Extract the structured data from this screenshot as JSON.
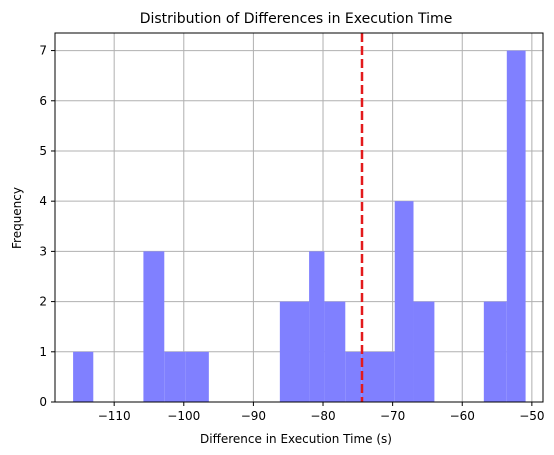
{
  "chart_data": {
    "type": "bar",
    "title": "Distribution of Differences in Execution Time",
    "xlabel": "Difference in Execution Time (s)",
    "ylabel": "Frequency",
    "xlim": [
      -118.5,
      -48.4
    ],
    "ylim": [
      0,
      7.35
    ],
    "xticks": [
      -110,
      -100,
      -90,
      -80,
      -70,
      -60,
      -50
    ],
    "xtick_labels": [
      "−110",
      "−100",
      "−90",
      "−80",
      "−70",
      "−60",
      "−50"
    ],
    "yticks": [
      0,
      1,
      2,
      3,
      4,
      5,
      6,
      7
    ],
    "grid": true,
    "bar_color": "#8080ff",
    "bins": [
      {
        "x0": -115.9,
        "x1": -113.0,
        "count": 1
      },
      {
        "x0": -113.0,
        "x1": -110.8,
        "count": 0
      },
      {
        "x0": -110.8,
        "x1": -107.2,
        "count": 0
      },
      {
        "x0": -105.8,
        "x1": -102.8,
        "count": 3
      },
      {
        "x0": -102.8,
        "x1": -99.8,
        "count": 1
      },
      {
        "x0": -99.8,
        "x1": -96.4,
        "count": 1
      },
      {
        "x0": -86.2,
        "x1": -82.0,
        "count": 2
      },
      {
        "x0": -82.0,
        "x1": -79.8,
        "count": 3
      },
      {
        "x0": -79.8,
        "x1": -76.8,
        "count": 2
      },
      {
        "x0": -76.8,
        "x1": -74.5,
        "count": 1
      },
      {
        "x0": -74.5,
        "x1": -69.7,
        "count": 1
      },
      {
        "x0": -69.7,
        "x1": -67.0,
        "count": 4
      },
      {
        "x0": -67.0,
        "x1": -64.0,
        "count": 2
      },
      {
        "x0": -56.9,
        "x1": -53.6,
        "count": 2
      },
      {
        "x0": -53.6,
        "x1": -50.9,
        "count": 7
      }
    ],
    "mean_line": {
      "x": -74.4,
      "color": "#e31a1c",
      "style": "dashed"
    }
  }
}
